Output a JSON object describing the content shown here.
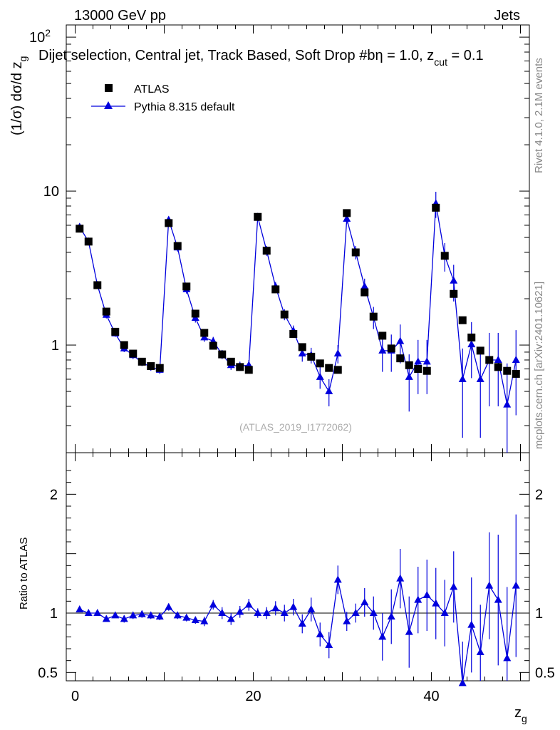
{
  "header": {
    "left": "13000 GeV pp",
    "right": "Jets"
  },
  "side": {
    "rivet": "Rivet 4.1.0,  2.1M events",
    "mcplots": "mcplots.cern.ch [arXiv:2401.10621]"
  },
  "colors": {
    "data": "#000000",
    "mc": "#0000dd"
  },
  "chart_data": {
    "type": "scatter",
    "title": "Dijet selection, Central jet, Track Based, Soft Drop #b",
    "title_suffix": "η = 1.0, z",
    "title_sub": "cut",
    "title_end": " = 0.1",
    "watermark": "(ATLAS_2019_I1772062)",
    "xlabel": "z",
    "xlabel_sub": "g",
    "ylabel": "(1/σ) dσ/d z",
    "ylabel_sub": "g",
    "ratio_ylabel": "Ratio to ATLAS",
    "xlim": [
      -1,
      51
    ],
    "ylim": [
      0.2,
      120
    ],
    "yscale": "log",
    "ratio_ylim": [
      0.43,
      2.35
    ],
    "x_ticks": [
      0,
      20,
      40
    ],
    "y_ticks": [
      {
        "v": 1,
        "label": "1"
      },
      {
        "v": 10,
        "label": "10"
      },
      {
        "v": 100,
        "label": "10",
        "sup": "2"
      }
    ],
    "ratio_ticks": [
      {
        "v": 0.5,
        "label": "0.5"
      },
      {
        "v": 1,
        "label": "1"
      },
      {
        "v": 2,
        "label": "2"
      }
    ],
    "legend": [
      {
        "name": "ATLAS",
        "marker": "square"
      },
      {
        "name": "Pythia 8.315 default",
        "marker": "triangle"
      }
    ],
    "x": [
      0.5,
      1.5,
      2.5,
      3.5,
      4.5,
      5.5,
      6.5,
      7.5,
      8.5,
      9.5,
      10.5,
      11.5,
      12.5,
      13.5,
      14.5,
      15.5,
      16.5,
      17.5,
      18.5,
      19.5,
      20.5,
      21.5,
      22.5,
      23.5,
      24.5,
      25.5,
      26.5,
      27.5,
      28.5,
      29.5,
      30.5,
      31.5,
      32.5,
      33.5,
      34.5,
      35.5,
      36.5,
      37.5,
      38.5,
      39.5,
      40.5,
      41.5,
      42.5,
      43.5,
      44.5,
      45.5,
      46.5,
      47.5,
      48.5,
      49.5
    ],
    "series": [
      {
        "name": "ATLAS",
        "values": [
          5.7,
          4.7,
          2.45,
          1.65,
          1.22,
          1.0,
          0.88,
          0.78,
          0.73,
          0.71,
          6.2,
          4.4,
          2.4,
          1.6,
          1.2,
          0.99,
          0.87,
          0.78,
          0.72,
          0.69,
          6.8,
          4.1,
          2.3,
          1.58,
          1.18,
          0.97,
          0.84,
          0.76,
          0.71,
          0.69,
          7.2,
          4.0,
          2.2,
          1.53,
          1.15,
          0.95,
          0.82,
          0.74,
          0.7,
          0.68,
          7.8,
          3.8,
          2.15,
          1.45,
          1.12,
          0.92,
          0.8,
          0.72,
          0.68,
          0.65
        ]
      },
      {
        "name": "Pythia 8.315 default",
        "values": [
          5.85,
          4.7,
          2.45,
          1.57,
          1.19,
          0.95,
          0.86,
          0.77,
          0.72,
          0.69,
          6.5,
          4.3,
          2.3,
          1.5,
          1.12,
          1.06,
          0.87,
          0.74,
          0.73,
          0.74,
          6.8,
          4.1,
          2.4,
          1.58,
          1.24,
          0.88,
          0.86,
          0.62,
          0.5,
          0.88,
          6.6,
          4.0,
          2.4,
          1.52,
          0.92,
          0.92,
          1.06,
          0.62,
          0.78,
          0.78,
          8.3,
          3.8,
          2.62,
          0.6,
          1.01,
          0.6,
          0.8,
          0.8,
          0.41,
          0.8
        ],
        "errors": [
          0.25,
          0.2,
          0.1,
          0.08,
          0.06,
          0.05,
          0.05,
          0.04,
          0.04,
          0.04,
          0.35,
          0.25,
          0.14,
          0.1,
          0.07,
          0.07,
          0.06,
          0.05,
          0.05,
          0.06,
          0.4,
          0.3,
          0.17,
          0.13,
          0.1,
          0.1,
          0.1,
          0.1,
          0.1,
          0.12,
          0.5,
          0.4,
          0.3,
          0.25,
          0.25,
          0.25,
          0.3,
          0.25,
          0.3,
          0.3,
          1.6,
          0.8,
          0.7,
          0.35,
          0.4,
          0.35,
          0.4,
          0.4,
          0.35,
          0.45
        ]
      }
    ],
    "ratio": {
      "values": [
        1.03,
        1.0,
        1.0,
        0.95,
        0.98,
        0.95,
        0.98,
        0.99,
        0.98,
        0.97,
        1.05,
        0.98,
        0.96,
        0.94,
        0.93,
        1.07,
        1.0,
        0.95,
        1.01,
        1.07,
        1.0,
        1.0,
        1.04,
        1.0,
        1.05,
        0.91,
        1.03,
        0.82,
        0.73,
        1.28,
        0.93,
        1.0,
        1.09,
        1.0,
        0.8,
        0.97,
        1.29,
        0.84,
        1.11,
        1.15,
        1.08,
        1.0,
        1.22,
        0.41,
        0.9,
        0.67,
        1.23,
        1.11,
        0.62,
        1.23
      ],
      "errors": [
        0.02,
        0.02,
        0.02,
        0.02,
        0.02,
        0.03,
        0.03,
        0.03,
        0.03,
        0.03,
        0.03,
        0.03,
        0.03,
        0.03,
        0.04,
        0.04,
        0.05,
        0.05,
        0.05,
        0.05,
        0.04,
        0.05,
        0.06,
        0.07,
        0.07,
        0.08,
        0.1,
        0.1,
        0.11,
        0.12,
        0.08,
        0.08,
        0.12,
        0.14,
        0.2,
        0.23,
        0.25,
        0.3,
        0.28,
        0.3,
        0.3,
        0.28,
        0.3,
        0.35,
        0.4,
        0.4,
        0.45,
        0.55,
        0.6,
        0.6
      ]
    }
  }
}
